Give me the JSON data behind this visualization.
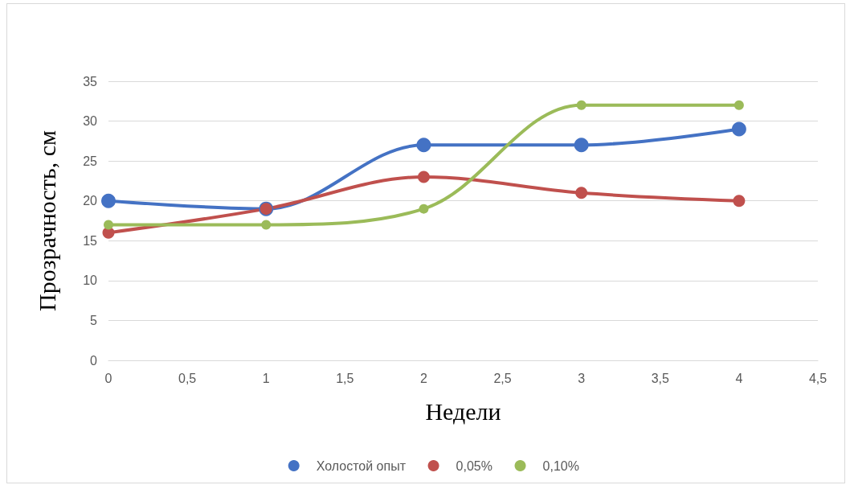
{
  "chart_data": {
    "type": "line",
    "xlabel": "Недели",
    "ylabel": "Прозрачность, см",
    "x": [
      0,
      1,
      2,
      3,
      4
    ],
    "series": [
      {
        "name": "Холостой опыт",
        "color": "#4472c4",
        "values": [
          20,
          19,
          27,
          27,
          29
        ]
      },
      {
        "name": "0,05%",
        "color": "#c0504d",
        "values": [
          16,
          19,
          23,
          21,
          20
        ]
      },
      {
        "name": "0,10%",
        "color": "#9bbb59",
        "values": [
          17,
          17,
          19,
          32,
          32
        ]
      }
    ],
    "xlim": [
      0,
      4.5
    ],
    "xticks": [
      0,
      {
        "value": 0.5,
        "label": "0,5"
      },
      1,
      {
        "value": 1.5,
        "label": "1,5"
      },
      2,
      {
        "value": 2.5,
        "label": "2,5"
      },
      3,
      {
        "value": 3.5,
        "label": "3,5"
      },
      4,
      {
        "value": 4.5,
        "label": "4,5"
      }
    ],
    "ylim": [
      0,
      35
    ],
    "yticks": [
      0,
      5,
      10,
      15,
      20,
      25,
      30,
      35
    ],
    "grid": "y",
    "legend": "bottom",
    "marker": "circle",
    "line_style": "solid"
  }
}
